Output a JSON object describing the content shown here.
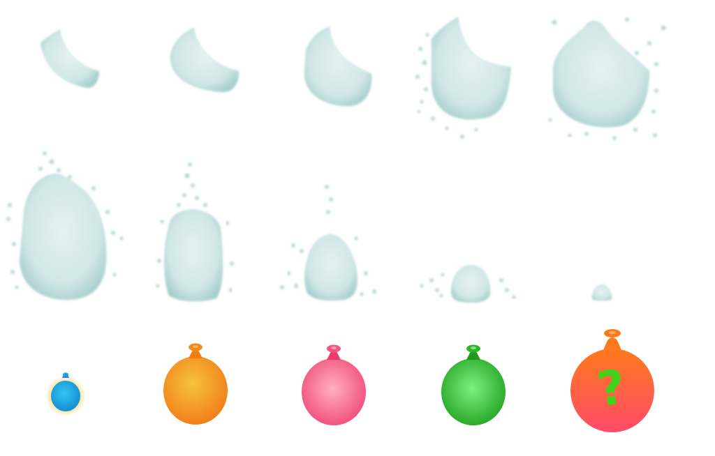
{
  "sprite_sheet": {
    "splash_frames": [
      {
        "id": 1,
        "stage": "splash-start"
      },
      {
        "id": 2,
        "stage": "splash-grow"
      },
      {
        "id": 3,
        "stage": "splash-grow"
      },
      {
        "id": 4,
        "stage": "splash-burst"
      },
      {
        "id": 5,
        "stage": "splash-burst"
      },
      {
        "id": 6,
        "stage": "splash-fall"
      },
      {
        "id": 7,
        "stage": "splash-fall"
      },
      {
        "id": 8,
        "stage": "splash-fade"
      },
      {
        "id": 9,
        "stage": "splash-fade"
      },
      {
        "id": 10,
        "stage": "splash-end"
      }
    ],
    "splash_color": "#9fc9c9",
    "balloons": [
      {
        "name": "blue-balloon",
        "color": "#1aa3e0",
        "glow": "#f7d36a"
      },
      {
        "name": "orange-balloon",
        "color": "#f28c1c"
      },
      {
        "name": "pink-balloon",
        "color": "#f0577e"
      },
      {
        "name": "green-balloon",
        "color": "#2bb52b"
      },
      {
        "name": "mystery-balloon",
        "color": "#ff6a2c",
        "symbol": "?",
        "symbol_color": "#3ed21a"
      }
    ]
  }
}
